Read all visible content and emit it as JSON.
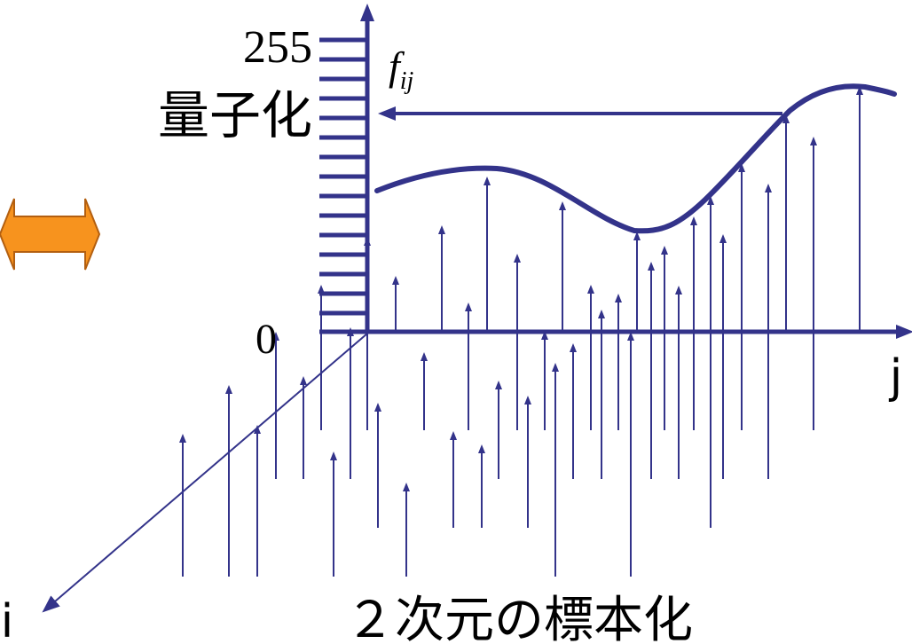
{
  "labels": {
    "max_level": "255",
    "quantization": "量子化",
    "zero": "0",
    "function_f": "f",
    "function_sub": "ij",
    "axis_j": "j",
    "axis_i": "i",
    "caption": "２次元の標本化"
  },
  "colors": {
    "stroke": "#33338a",
    "arrow_fill": "#f7931e",
    "arrow_stroke": "#b35f10",
    "text": "#000000"
  }
}
